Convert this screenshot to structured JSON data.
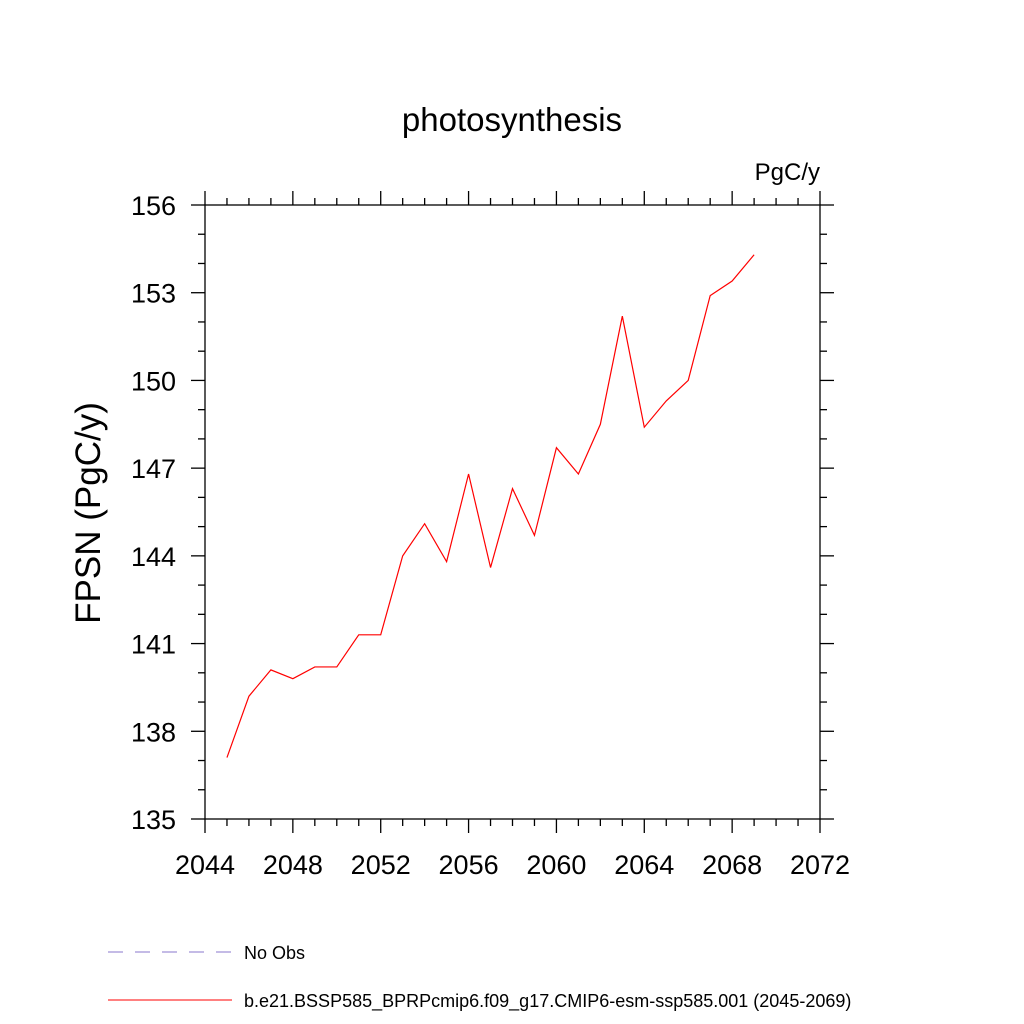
{
  "chart_data": {
    "type": "line",
    "title": "photosynthesis",
    "units": "PgC/y",
    "xlabel": "",
    "ylabel": "FPSN  (PgC/y)",
    "xlim": [
      2044,
      2072
    ],
    "ylim": [
      135,
      156
    ],
    "xticks": [
      "2044",
      "2048",
      "2052",
      "2056",
      "2060",
      "2064",
      "2068",
      "2072"
    ],
    "yticks": [
      "135",
      "138",
      "141",
      "144",
      "147",
      "150",
      "153",
      "156"
    ],
    "grid": false,
    "legend_position": "bottom-left",
    "series": [
      {
        "name": "b.e21.BSSP585_BPRPcmip6.f09_g17.CMIP6-esm-ssp585.001 (2045-2069)",
        "color": "#ff0000",
        "dash": "solid",
        "x": [
          2045,
          2046,
          2047,
          2048,
          2049,
          2050,
          2051,
          2052,
          2053,
          2054,
          2055,
          2056,
          2057,
          2058,
          2059,
          2060,
          2061,
          2062,
          2063,
          2064,
          2065,
          2066,
          2067,
          2068,
          2069
        ],
        "y": [
          137.1,
          139.2,
          140.1,
          139.8,
          140.2,
          140.2,
          141.3,
          141.3,
          144.0,
          145.1,
          143.8,
          146.8,
          143.6,
          146.3,
          144.7,
          147.7,
          146.8,
          148.5,
          152.2,
          148.4,
          149.3,
          150.0,
          152.9,
          153.4,
          154.3
        ]
      }
    ],
    "legend": [
      {
        "label": "No Obs",
        "color": "#8877cc",
        "dash": "dashed"
      },
      {
        "label": "b.e21.BSSP585_BPRPcmip6.f09_g17.CMIP6-esm-ssp585.001 (2045-2069)",
        "color": "#ff0000",
        "dash": "solid"
      }
    ]
  }
}
